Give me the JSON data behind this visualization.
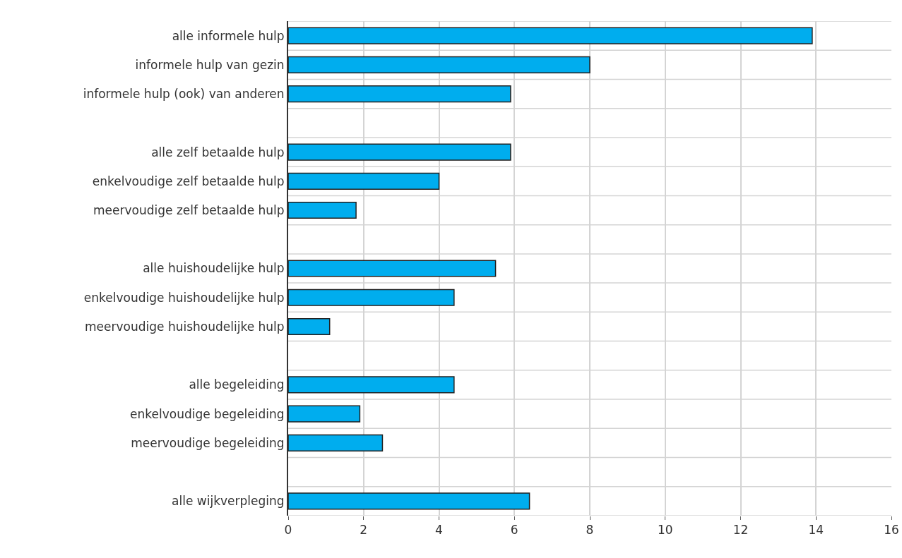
{
  "chart_data": {
    "type": "bar",
    "orientation": "horizontal",
    "categories": [
      "alle informele hulp",
      "informele hulp van gezin",
      "informele hulp (ook) van anderen",
      null,
      "alle zelf betaalde hulp",
      "enkelvoudige zelf betaalde hulp",
      "meervoudige zelf betaalde hulp",
      null,
      "alle huishoudelijke hulp",
      "enkelvoudige huishoudelijke hulp",
      "meervoudige huishoudelijke hulp",
      null,
      "alle begeleiding",
      "enkelvoudige begeleiding",
      "meervoudige begeleiding",
      null,
      "alle wijkverpleging"
    ],
    "values": [
      13.9,
      8.0,
      5.9,
      null,
      5.9,
      4.0,
      1.8,
      null,
      5.5,
      4.4,
      1.1,
      null,
      4.4,
      1.9,
      2.5,
      null,
      6.4
    ],
    "color": "#00adee",
    "xlim": [
      0,
      16
    ],
    "xticks": [
      0,
      2,
      4,
      6,
      8,
      10,
      12,
      14,
      16
    ],
    "grid": true,
    "legend": false
  }
}
